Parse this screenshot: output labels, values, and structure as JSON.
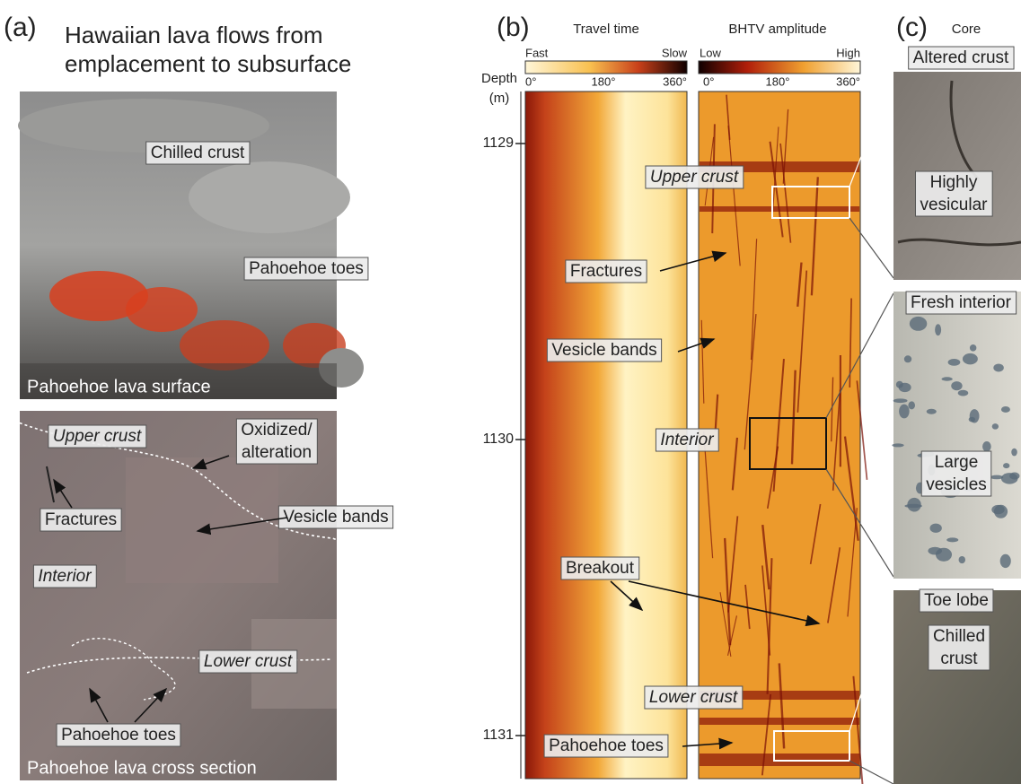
{
  "panel_a": {
    "label": "(a)",
    "title_lines": [
      "Hawaiian lava flows from",
      "emplacement to subsurface"
    ],
    "surface_photo": {
      "labels": [
        "Chilled crust",
        "Pahoehoe toes"
      ],
      "caption": "Pahoehoe lava  surface"
    },
    "section_photo": {
      "labels": [
        "Upper crust",
        "Oxidized/",
        "alteration",
        "Fractures",
        "Vesicle bands",
        "Interior",
        "Lower crust",
        "Pahoehoe toes"
      ],
      "caption": "Pahoehoe lava cross section"
    }
  },
  "panel_b": {
    "label": "(b)",
    "travel_time": {
      "title": "Travel time",
      "low": "Fast",
      "high": "Slow",
      "ticks": [
        "0°",
        "180°",
        "360°"
      ]
    },
    "amplitude": {
      "title": "BHTV amplitude",
      "low": "Low",
      "high": "High",
      "ticks": [
        "0°",
        "180°",
        "360°"
      ]
    },
    "depth_label": [
      "Depth",
      "(m)"
    ],
    "depth_ticks": [
      1129,
      1130,
      1131
    ],
    "labels": [
      "Upper crust",
      "Fractures",
      "Vesicle bands",
      "Interior",
      "Breakout",
      "Lower crust",
      "Pahoehoe toes"
    ]
  },
  "panel_c": {
    "label": "(c)",
    "title": "Core",
    "cores": [
      {
        "title": "Altered crust",
        "label_lines": [
          "Highly",
          "vesicular"
        ]
      },
      {
        "title": "Fresh interior",
        "label_lines": [
          "Large",
          "vesicles"
        ]
      },
      {
        "title": "Toe lobe",
        "label_lines": [
          "Chilled",
          "crust"
        ]
      }
    ]
  }
}
